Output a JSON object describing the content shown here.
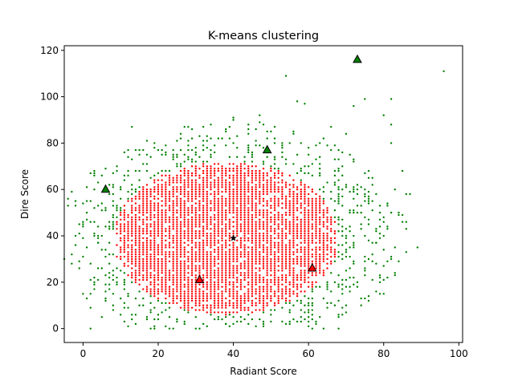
{
  "chart_data": {
    "type": "scatter",
    "title": "K-means clustering",
    "xlabel": "Radiant Score",
    "ylabel": "Dire Score",
    "xlim": [
      -5,
      101
    ],
    "ylim": [
      -6,
      122
    ],
    "xticks": [
      0,
      20,
      40,
      60,
      80,
      100
    ],
    "yticks": [
      0,
      20,
      40,
      60,
      80,
      100,
      120
    ],
    "grid": false,
    "legend": "none",
    "colors": {
      "cluster_inner": "#ff0000",
      "cluster_outer": "#008000",
      "centroid_fill": "#008000",
      "centroid_alt_fill": "#ff0000",
      "center_marker": "#000000"
    },
    "inner_cluster_ellipse": {
      "cx": 38,
      "cy": 39,
      "rx": 30,
      "ry": 33
    },
    "outer_cluster_ellipse": {
      "cx": 40,
      "cy": 40,
      "rx": 47,
      "ry": 50
    },
    "outer_outliers": [
      [
        0,
        15
      ],
      [
        2,
        9
      ],
      [
        2,
        0
      ],
      [
        5,
        5
      ],
      [
        1,
        13
      ],
      [
        3,
        20
      ],
      [
        4,
        26
      ],
      [
        4,
        37
      ],
      [
        7,
        44
      ],
      [
        10,
        56
      ],
      [
        13,
        73
      ],
      [
        13,
        87
      ],
      [
        18,
        74
      ],
      [
        40,
        91
      ],
      [
        44,
        79
      ],
      [
        47,
        92
      ],
      [
        54,
        109
      ],
      [
        57,
        98
      ],
      [
        59,
        97
      ],
      [
        64,
        82
      ],
      [
        66,
        87
      ],
      [
        70,
        84
      ],
      [
        72,
        96
      ],
      [
        75,
        99
      ],
      [
        80,
        92
      ],
      [
        82,
        99
      ],
      [
        82,
        88
      ],
      [
        82,
        80
      ],
      [
        85,
        68
      ],
      [
        86,
        58
      ],
      [
        84,
        50
      ],
      [
        83,
        60
      ],
      [
        87,
        58
      ],
      [
        89,
        35
      ],
      [
        96,
        111
      ],
      [
        79,
        47
      ],
      [
        78,
        37
      ],
      [
        80,
        40
      ],
      [
        82,
        50
      ],
      [
        76,
        30
      ],
      [
        73,
        20
      ],
      [
        70,
        10
      ],
      [
        60,
        5
      ],
      [
        50,
        3
      ],
      [
        38,
        2
      ],
      [
        25,
        3
      ]
    ],
    "centroids": [
      {
        "x": 6,
        "y": 60,
        "color": "green"
      },
      {
        "x": 73,
        "y": 116,
        "color": "green"
      },
      {
        "x": 49,
        "y": 77,
        "color": "green"
      },
      {
        "x": 31,
        "y": 21,
        "color": "red"
      },
      {
        "x": 61,
        "y": 26,
        "color": "red"
      }
    ],
    "center_star": {
      "x": 40,
      "y": 39
    }
  }
}
